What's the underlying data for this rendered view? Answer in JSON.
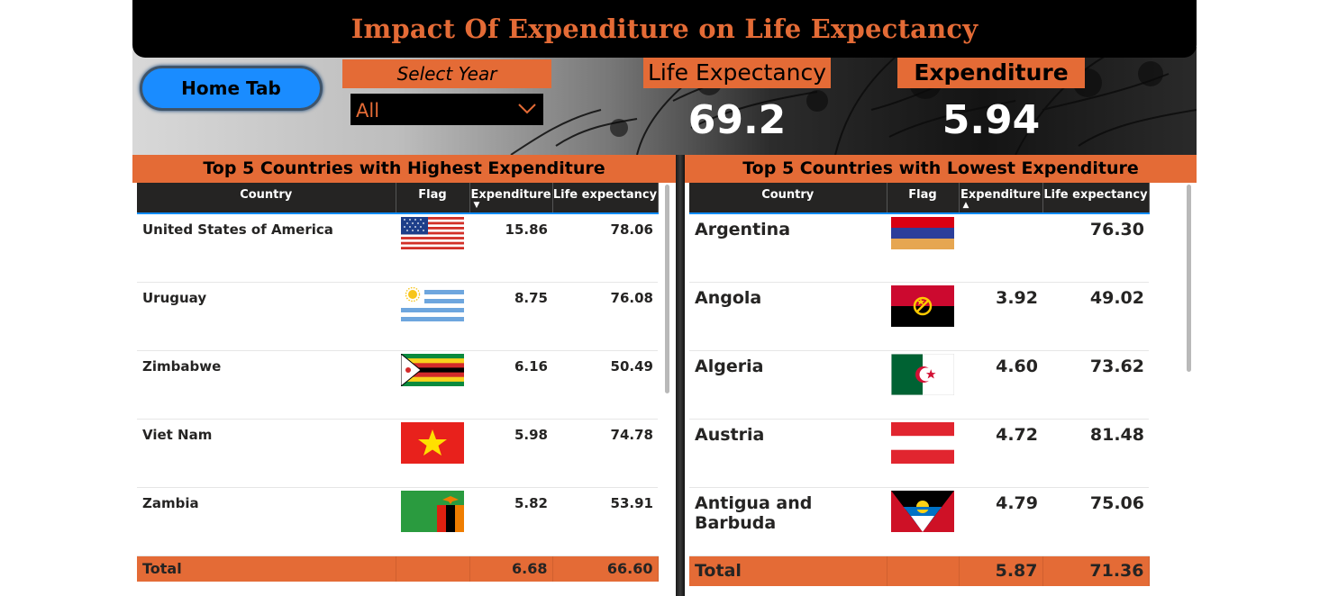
{
  "header": {
    "title": "Impact Of Expenditure on Life Expectancy"
  },
  "controls": {
    "home_label": "Home Tab",
    "select_year_label": "Select Year",
    "year_value": "All"
  },
  "kpis": {
    "life_expectancy_label": "Life Expectancy",
    "life_expectancy_value": "69.2",
    "expenditure_label": "Expenditure",
    "expenditure_value": "5.94"
  },
  "colors": {
    "accent": "#e46b36",
    "header_bg": "#000000",
    "button": "#1a8cff",
    "table_header": "#252423"
  },
  "highest": {
    "title": "Top 5 Countries with Highest Expenditure",
    "columns": [
      "Country",
      "Flag",
      "Expenditure",
      "Life expectancy"
    ],
    "rows": [
      {
        "country": "United States of America",
        "flag": "usa-flag",
        "expenditure": "15.86",
        "life": "78.06"
      },
      {
        "country": "Uruguay",
        "flag": "uruguay-flag",
        "expenditure": "8.75",
        "life": "76.08"
      },
      {
        "country": "Zimbabwe",
        "flag": "zimbabwe-flag",
        "expenditure": "6.16",
        "life": "50.49"
      },
      {
        "country": "Viet Nam",
        "flag": "vietnam-flag",
        "expenditure": "5.98",
        "life": "74.78"
      },
      {
        "country": "Zambia",
        "flag": "zambia-flag",
        "expenditure": "5.82",
        "life": "53.91"
      }
    ],
    "total": {
      "label": "Total",
      "expenditure": "6.68",
      "life": "66.60"
    }
  },
  "lowest": {
    "title": "Top 5 Countries with Lowest Expenditure",
    "columns": [
      "Country",
      "Flag",
      "Expenditure",
      "Life expectancy"
    ],
    "rows": [
      {
        "country": "Argentina",
        "flag": "armenia-flag",
        "expenditure": "",
        "life": "76.30"
      },
      {
        "country": "Angola",
        "flag": "angola-flag",
        "expenditure": "3.92",
        "life": "49.02"
      },
      {
        "country": "Algeria",
        "flag": "algeria-flag",
        "expenditure": "4.60",
        "life": "73.62"
      },
      {
        "country": "Austria",
        "flag": "austria-flag",
        "expenditure": "4.72",
        "life": "81.48"
      },
      {
        "country": "Antigua and Barbuda",
        "flag": "antigua-flag",
        "expenditure": "4.79",
        "life": "75.06"
      }
    ],
    "total": {
      "label": "Total",
      "expenditure": "5.87",
      "life": "71.36"
    }
  }
}
